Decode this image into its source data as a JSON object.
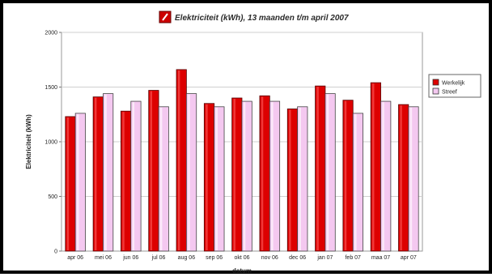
{
  "chart_data": {
    "type": "bar",
    "title": "Elektriciteit (kWh), 13 maanden t/m april 2007",
    "xlabel": "datum",
    "ylabel": "Elektriciteit (kWh)",
    "ylim": [
      0,
      2000
    ],
    "yticks": [
      0,
      500,
      1000,
      1500,
      2000
    ],
    "grid": true,
    "legend_position": "right",
    "categories": [
      "apr 06",
      "mei 06",
      "jun 06",
      "jul 06",
      "aug 06",
      "sep 06",
      "okt 06",
      "nov 06",
      "dec 06",
      "jan 07",
      "feb 07",
      "maa 07",
      "apr 07"
    ],
    "series": [
      {
        "name": "Werkelijk",
        "color": "#dd0000",
        "values": [
          1230,
          1410,
          1280,
          1470,
          1660,
          1350,
          1400,
          1420,
          1300,
          1510,
          1380,
          1540,
          1340
        ]
      },
      {
        "name": "Streef",
        "color": "#f4c8f0",
        "values": [
          1260,
          1440,
          1370,
          1320,
          1440,
          1320,
          1370,
          1370,
          1320,
          1440,
          1260,
          1370,
          1320
        ]
      }
    ]
  }
}
